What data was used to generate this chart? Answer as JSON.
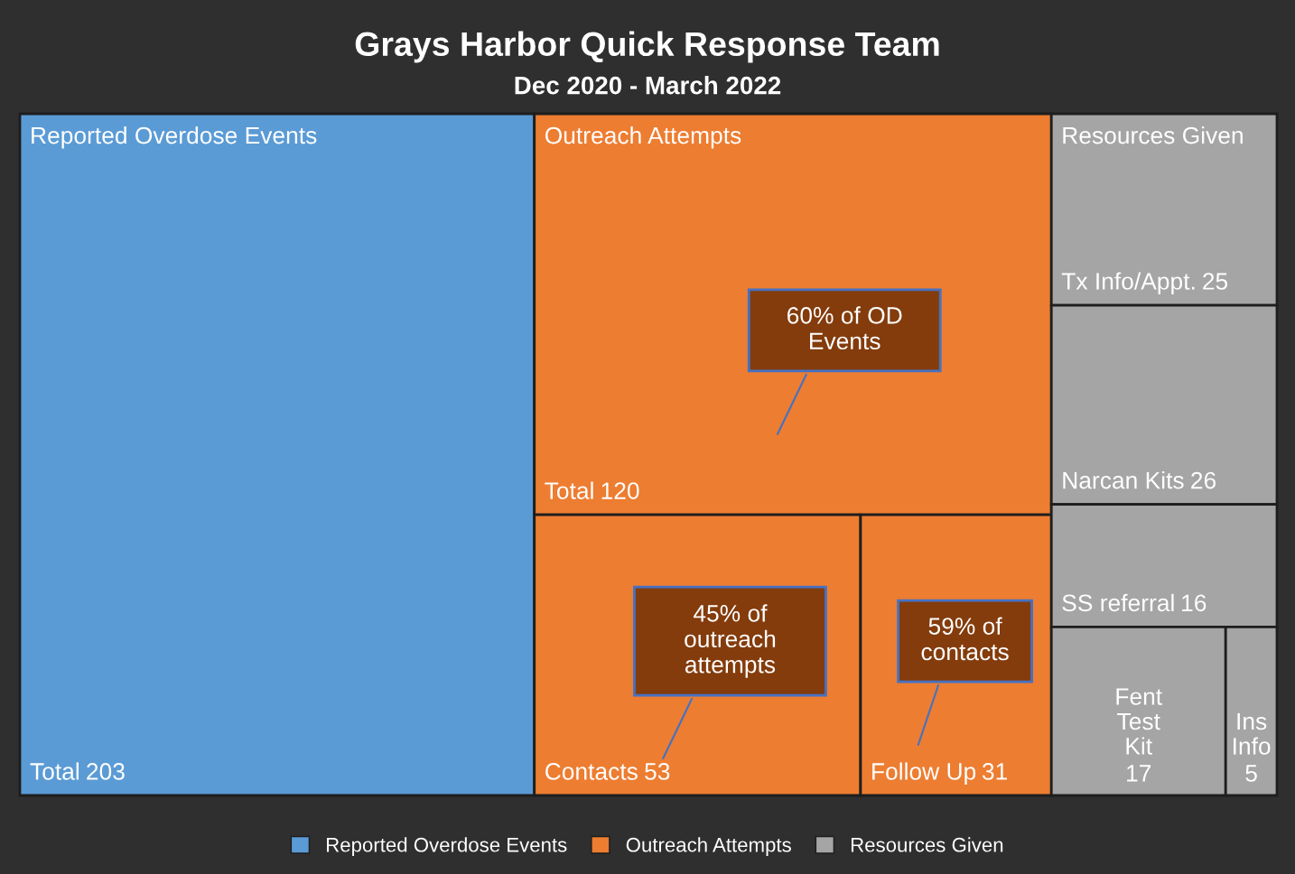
{
  "chart_data": {
    "type": "other",
    "title": "Grays Harbor Quick Response Team",
    "subtitle": "Dec 2020 - March 2022",
    "legend": "bottom",
    "data_labels": true,
    "categories": [
      "Total",
      "Total",
      "Contacts",
      "Follow Up",
      "Tx Info/Appt.",
      "Narcan Kits",
      "SS referral",
      "Fent Test Kit",
      "Ins Info"
    ],
    "series": [
      {
        "name": "Reported Overdose Events",
        "color": "#5b9bd5",
        "values": [
          203,
          null,
          null,
          null,
          null,
          null,
          null,
          null,
          null
        ]
      },
      {
        "name": "Outreach Attempts",
        "color": "#ed7d31",
        "values": [
          null,
          120,
          53,
          31,
          null,
          null,
          null,
          null,
          null
        ]
      },
      {
        "name": "Resources Given",
        "color": "#a5a5a5",
        "values": [
          null,
          null,
          null,
          null,
          25,
          26,
          16,
          17,
          5
        ]
      }
    ],
    "annotations": [
      {
        "text": "60% of OD Events",
        "x": "Total"
      },
      {
        "text": "45% of outreach attempts",
        "x": "Contacts"
      },
      {
        "text": "59% of contacts",
        "x": "Follow Up"
      }
    ]
  }
}
